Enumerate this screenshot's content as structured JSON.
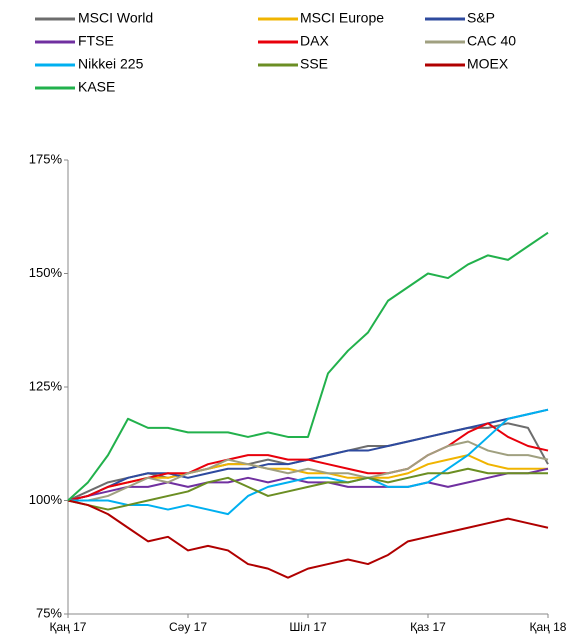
{
  "chart_data": {
    "type": "line",
    "categories": [
      "Қаң 17",
      null,
      null,
      null,
      null,
      null,
      "Сәу 17",
      null,
      null,
      null,
      null,
      null,
      "Шіл 17",
      null,
      null,
      null,
      null,
      null,
      "Қаз 17",
      null,
      null,
      null,
      null,
      null,
      "Қаң 18"
    ],
    "series": [
      {
        "name": "MSCI World",
        "color": "#6d6d6d",
        "values": [
          100,
          102,
          104,
          105,
          106,
          105,
          106,
          107,
          108,
          108,
          109,
          108,
          109,
          110,
          111,
          112,
          112,
          113,
          114,
          115,
          116,
          116,
          117,
          116,
          108
        ]
      },
      {
        "name": "MSCI Europe",
        "color": "#f0b400",
        "values": [
          100,
          101,
          103,
          104,
          105,
          105,
          106,
          107,
          108,
          108,
          107,
          107,
          106,
          106,
          105,
          105,
          105,
          106,
          108,
          109,
          110,
          108,
          107,
          107,
          107
        ]
      },
      {
        "name": "S&P",
        "color": "#2e4a9e",
        "values": [
          100,
          101,
          103,
          105,
          106,
          106,
          105,
          106,
          107,
          107,
          108,
          108,
          109,
          110,
          111,
          111,
          112,
          113,
          114,
          115,
          116,
          117,
          118,
          119,
          120
        ]
      },
      {
        "name": "FTSE",
        "color": "#7030a0",
        "values": [
          100,
          101,
          102,
          103,
          103,
          104,
          103,
          104,
          104,
          105,
          104,
          105,
          104,
          104,
          103,
          103,
          103,
          103,
          104,
          103,
          104,
          105,
          106,
          106,
          107
        ]
      },
      {
        "name": "DAX",
        "color": "#e8000b",
        "values": [
          100,
          101,
          103,
          104,
          105,
          106,
          106,
          108,
          109,
          110,
          110,
          109,
          109,
          108,
          107,
          106,
          106,
          107,
          110,
          112,
          115,
          117,
          114,
          112,
          111
        ]
      },
      {
        "name": "CAC 40",
        "color": "#a0a080",
        "values": [
          100,
          100,
          101,
          103,
          105,
          104,
          106,
          107,
          109,
          108,
          107,
          106,
          107,
          106,
          106,
          105,
          106,
          107,
          110,
          112,
          113,
          111,
          110,
          110,
          109
        ]
      },
      {
        "name": "Nikkei 225",
        "color": "#00b0f0",
        "values": [
          100,
          100,
          100,
          99,
          99,
          98,
          99,
          98,
          97,
          101,
          103,
          104,
          105,
          105,
          104,
          105,
          103,
          103,
          104,
          107,
          110,
          114,
          118,
          119,
          120
        ]
      },
      {
        "name": "SSE",
        "color": "#6b8e23",
        "values": [
          100,
          99,
          98,
          99,
          100,
          101,
          102,
          104,
          105,
          103,
          101,
          102,
          103,
          104,
          104,
          105,
          104,
          105,
          106,
          106,
          107,
          106,
          106,
          106,
          106
        ]
      },
      {
        "name": "MOEX",
        "color": "#b00000",
        "values": [
          100,
          99,
          97,
          94,
          91,
          92,
          89,
          90,
          89,
          86,
          85,
          83,
          85,
          86,
          87,
          86,
          88,
          91,
          92,
          93,
          94,
          95,
          96,
          95,
          94
        ]
      },
      {
        "name": "KASE",
        "color": "#22b14c",
        "values": [
          100,
          104,
          110,
          118,
          116,
          116,
          115,
          115,
          115,
          114,
          115,
          114,
          114,
          128,
          133,
          137,
          144,
          147,
          150,
          149,
          152,
          154,
          153,
          156,
          159
        ]
      }
    ],
    "ylim": [
      75,
      175
    ],
    "yticks": [
      {
        "value": 75,
        "label": "75%"
      },
      {
        "value": 100,
        "label": "100%"
      },
      {
        "value": 125,
        "label": "125%"
      },
      {
        "value": 150,
        "label": "150%"
      },
      {
        "value": 175,
        "label": "175%"
      }
    ],
    "grid": false
  }
}
